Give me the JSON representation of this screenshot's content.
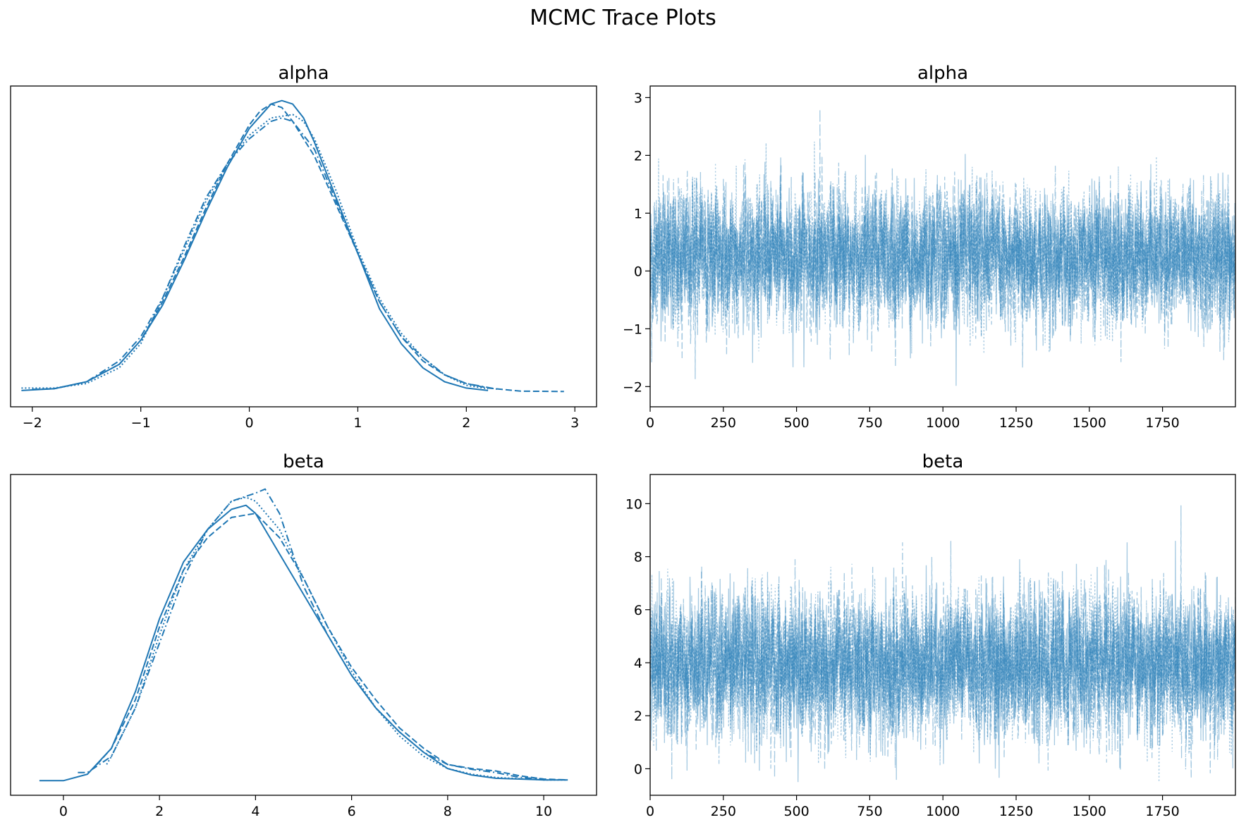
{
  "figure": {
    "title": "MCMC Trace Plots"
  },
  "colors": {
    "series": "#1f77b4",
    "axis": "#000000"
  },
  "chart_data": [
    {
      "type": "line",
      "panel": "density",
      "title": "alpha",
      "xlim": [
        -2.2,
        3.2
      ],
      "xticks": [
        -2,
        -1,
        0,
        1,
        2,
        3
      ],
      "xtick_labels": [
        "−2",
        "−1",
        "0",
        "1",
        "2",
        "3"
      ],
      "yticks": [],
      "grid": false,
      "series": [
        {
          "linestyle": "solid",
          "x": [
            -2.1,
            -1.8,
            -1.5,
            -1.2,
            -1.0,
            -0.8,
            -0.6,
            -0.4,
            -0.2,
            0.0,
            0.2,
            0.3,
            0.4,
            0.5,
            0.6,
            0.8,
            1.0,
            1.2,
            1.4,
            1.6,
            1.8,
            2.0,
            2.2
          ],
          "y": [
            0.005,
            0.01,
            0.03,
            0.08,
            0.15,
            0.25,
            0.38,
            0.52,
            0.65,
            0.76,
            0.83,
            0.84,
            0.83,
            0.79,
            0.72,
            0.56,
            0.4,
            0.24,
            0.14,
            0.07,
            0.03,
            0.012,
            0.005
          ]
        },
        {
          "linestyle": "dashed",
          "x": [
            -2.0,
            -1.8,
            -1.5,
            -1.2,
            -1.0,
            -0.8,
            -0.6,
            -0.4,
            -0.2,
            0.0,
            0.1,
            0.2,
            0.3,
            0.4,
            0.6,
            0.8,
            1.0,
            1.2,
            1.4,
            1.6,
            1.8,
            2.0,
            2.2,
            2.5,
            2.9
          ],
          "y": [
            0.008,
            0.01,
            0.03,
            0.08,
            0.15,
            0.26,
            0.39,
            0.53,
            0.66,
            0.77,
            0.81,
            0.83,
            0.82,
            0.78,
            0.68,
            0.54,
            0.4,
            0.26,
            0.16,
            0.09,
            0.05,
            0.025,
            0.012,
            0.003,
            0.002
          ]
        },
        {
          "linestyle": "dotted",
          "x": [
            -2.1,
            -1.8,
            -1.5,
            -1.2,
            -1.0,
            -0.8,
            -0.6,
            -0.4,
            -0.2,
            0.0,
            0.2,
            0.4,
            0.5,
            0.6,
            0.8,
            1.0,
            1.2,
            1.4,
            1.6,
            1.8,
            2.0,
            2.2
          ],
          "y": [
            0.012,
            0.012,
            0.025,
            0.07,
            0.14,
            0.27,
            0.41,
            0.55,
            0.66,
            0.74,
            0.79,
            0.8,
            0.78,
            0.73,
            0.58,
            0.41,
            0.27,
            0.17,
            0.1,
            0.05,
            0.02,
            0.01
          ]
        },
        {
          "linestyle": "dashdot",
          "x": [
            -2.0,
            -1.8,
            -1.5,
            -1.2,
            -1.0,
            -0.8,
            -0.6,
            -0.4,
            -0.2,
            0.0,
            0.2,
            0.3,
            0.4,
            0.6,
            0.8,
            1.0,
            1.2,
            1.4,
            1.6,
            1.8,
            2.0,
            2.3
          ],
          "y": [
            0.008,
            0.01,
            0.03,
            0.09,
            0.16,
            0.27,
            0.42,
            0.56,
            0.66,
            0.73,
            0.78,
            0.79,
            0.78,
            0.7,
            0.55,
            0.4,
            0.26,
            0.16,
            0.1,
            0.05,
            0.025,
            0.008
          ]
        }
      ]
    },
    {
      "type": "line",
      "panel": "trace",
      "title": "alpha",
      "xlim": [
        0,
        1999
      ],
      "ylim": [
        -2.35,
        3.2
      ],
      "xticks": [
        0,
        250,
        500,
        750,
        1000,
        1250,
        1500,
        1750
      ],
      "xtick_labels": [
        "0",
        "250",
        "500",
        "750",
        "1000",
        "1250",
        "1500",
        "1750"
      ],
      "yticks": [
        -2,
        -1,
        0,
        1,
        2,
        3
      ],
      "ytick_labels": [
        "−2",
        "−1",
        "0",
        "1",
        "2",
        "3"
      ],
      "grid": false,
      "n_draws": 2000,
      "n_chains": 4,
      "mean": 0.25,
      "sd": 0.55,
      "min": -2.08,
      "max": 2.95
    },
    {
      "type": "line",
      "panel": "density",
      "title": "beta",
      "xlim": [
        -1.1,
        11.1
      ],
      "xticks": [
        0,
        2,
        4,
        6,
        8,
        10
      ],
      "xtick_labels": [
        "0",
        "2",
        "4",
        "6",
        "8",
        "10"
      ],
      "yticks": [],
      "grid": false,
      "series": [
        {
          "linestyle": "solid",
          "x": [
            -0.5,
            0.0,
            0.5,
            1.0,
            1.5,
            2.0,
            2.5,
            3.0,
            3.5,
            3.8,
            4.0,
            4.5,
            5.0,
            5.5,
            6.0,
            6.5,
            7.0,
            7.5,
            8.0,
            8.5,
            9.0,
            10.0,
            10.5
          ],
          "y": [
            0.0,
            0.0,
            0.008,
            0.04,
            0.11,
            0.2,
            0.27,
            0.31,
            0.335,
            0.34,
            0.33,
            0.28,
            0.23,
            0.18,
            0.13,
            0.09,
            0.06,
            0.035,
            0.015,
            0.007,
            0.003,
            0.001,
            0.001
          ]
        },
        {
          "linestyle": "dashed",
          "x": [
            0.7,
            1.0,
            1.5,
            2.0,
            2.5,
            3.0,
            3.5,
            4.0,
            4.5,
            5.0,
            5.5,
            6.0,
            6.5,
            7.0,
            7.5,
            8.0,
            8.5,
            9.0,
            9.5,
            10.0,
            10.5
          ],
          "y": [
            0.02,
            0.04,
            0.1,
            0.19,
            0.26,
            0.3,
            0.325,
            0.33,
            0.3,
            0.25,
            0.19,
            0.14,
            0.1,
            0.065,
            0.04,
            0.02,
            0.015,
            0.012,
            0.006,
            0.002,
            0.001
          ]
        },
        {
          "linestyle": "dotted",
          "x": [
            0.9,
            1.0,
            1.5,
            2.0,
            2.5,
            3.0,
            3.5,
            3.8,
            4.0,
            4.5,
            5.0,
            5.5,
            6.0,
            6.5,
            7.0,
            7.5,
            8.0,
            8.5,
            9.0,
            10.0,
            10.5
          ],
          "y": [
            0.02,
            0.03,
            0.09,
            0.18,
            0.26,
            0.31,
            0.345,
            0.35,
            0.345,
            0.31,
            0.25,
            0.19,
            0.135,
            0.09,
            0.055,
            0.03,
            0.015,
            0.008,
            0.004,
            0.001,
            0.001
          ]
        },
        {
          "linestyle": "dashdot",
          "x": [
            0.3,
            0.5,
            1.0,
            1.5,
            2.0,
            2.5,
            3.0,
            3.5,
            4.0,
            4.2,
            4.5,
            5.0,
            5.5,
            6.0,
            6.5,
            7.0,
            7.5,
            8.0,
            8.5,
            9.0,
            9.5,
            10.0
          ],
          "y": [
            0.01,
            0.01,
            0.03,
            0.09,
            0.17,
            0.25,
            0.31,
            0.345,
            0.355,
            0.36,
            0.33,
            0.24,
            0.18,
            0.13,
            0.09,
            0.06,
            0.035,
            0.02,
            0.014,
            0.01,
            0.004,
            0.002
          ]
        }
      ]
    },
    {
      "type": "line",
      "panel": "trace",
      "title": "beta",
      "xlim": [
        0,
        1999
      ],
      "ylim": [
        -1.0,
        11.1
      ],
      "xticks": [
        0,
        250,
        500,
        750,
        1000,
        1250,
        1500,
        1750
      ],
      "xtick_labels": [
        "0",
        "250",
        "500",
        "750",
        "1000",
        "1250",
        "1500",
        "1750"
      ],
      "yticks": [
        0,
        2,
        4,
        6,
        8,
        10
      ],
      "ytick_labels": [
        "0",
        "2",
        "4",
        "6",
        "8",
        "10"
      ],
      "grid": false,
      "n_draws": 2000,
      "n_chains": 4,
      "mean": 3.9,
      "sd": 1.3,
      "min": -0.5,
      "max": 10.5
    }
  ]
}
